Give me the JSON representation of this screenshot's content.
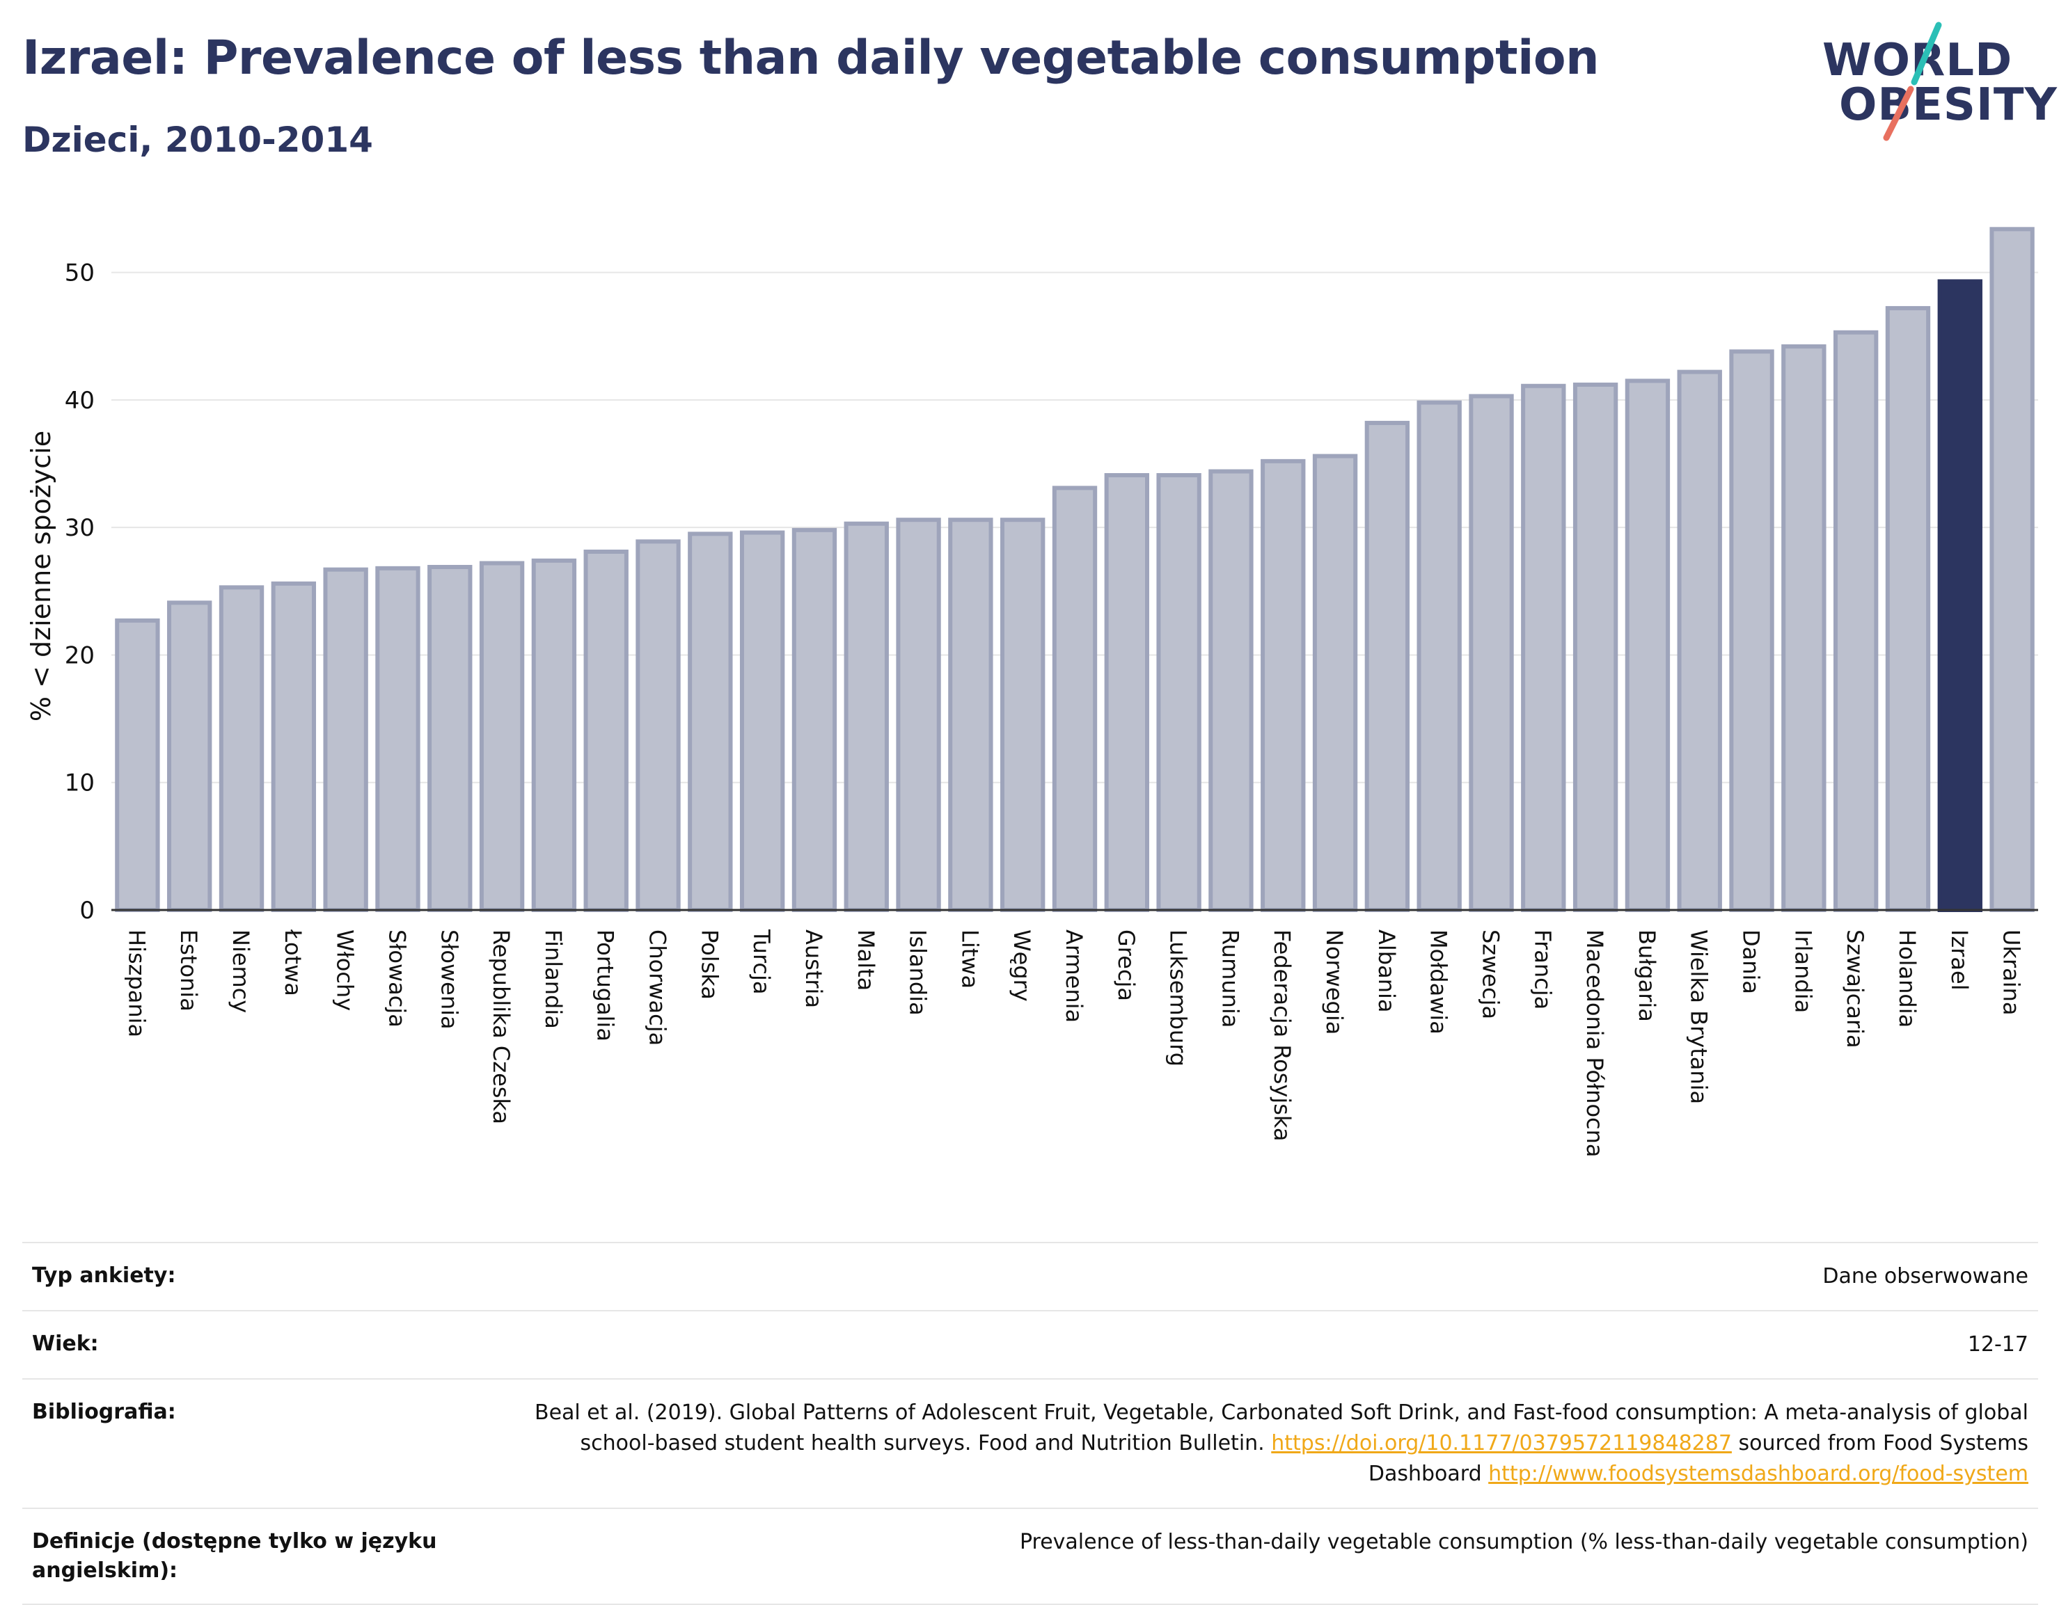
{
  "header": {
    "title": "Izrael: Prevalence of less than daily vegetable consumption",
    "subtitle": "Dzieci, 2010-2014"
  },
  "logo": {
    "line1": "WORLD",
    "line2": "OBESITY",
    "colors": {
      "text": "#2c3560",
      "slash_top": "#2bbfb6",
      "slash_bottom": "#e8705f"
    }
  },
  "colors": {
    "bar": "#2c3560",
    "bar_muted_fill": "#bcc0ce",
    "bar_muted_stroke": "#9ea4bb",
    "grid": "#e6e6e6",
    "link": "#f0a818"
  },
  "chart_data": {
    "type": "bar",
    "ylabel": "% < dzienne spożycie",
    "xlabel": "",
    "ylim": [
      0,
      55
    ],
    "yticks": [
      0,
      10,
      20,
      30,
      40,
      50
    ],
    "grid": true,
    "highlight": "Izrael",
    "categories": [
      "Hiszpania",
      "Estonia",
      "Niemcy",
      "Łotwa",
      "Włochy",
      "Słowacja",
      "Słowenia",
      "Republika Czeska",
      "Finlandia",
      "Portugalia",
      "Chorwacja",
      "Polska",
      "Turcja",
      "Austria",
      "Malta",
      "Islandia",
      "Litwa",
      "Węgry",
      "Armenia",
      "Grecja",
      "Luksemburg",
      "Rumunia",
      "Federacja Rosyjska",
      "Norwegia",
      "Albania",
      "Mołdawia",
      "Szwecja",
      "Francja",
      "Macedonia Północna",
      "Bułgaria",
      "Wielka Brytania",
      "Dania",
      "Irlandia",
      "Szwajcaria",
      "Holandia",
      "Izrael",
      "Ukraina"
    ],
    "values": [
      22.7,
      24.1,
      25.3,
      25.6,
      26.7,
      26.8,
      26.9,
      27.2,
      27.4,
      28.1,
      28.9,
      29.5,
      29.6,
      29.8,
      30.3,
      30.6,
      30.6,
      30.6,
      33.1,
      34.1,
      34.1,
      34.4,
      35.2,
      35.6,
      38.2,
      39.8,
      40.3,
      41.1,
      41.2,
      41.5,
      42.2,
      43.8,
      44.2,
      45.3,
      47.2,
      49.3,
      53.4
    ]
  },
  "meta": {
    "rows": [
      {
        "label": "Typ ankiety:",
        "value": "Dane obserwowane"
      },
      {
        "label": "Wiek:",
        "value": "12-17"
      },
      {
        "label": "Bibliografia:",
        "text_a": "Beal et al. (2019). Global Patterns of Adolescent Fruit, Vegetable, Carbonated Soft Drink, and Fast-food consumption: A meta-analysis of global school-based student health surveys. Food and Nutrition Bulletin. ",
        "link_a": "https://doi.org/10.1177/0379572119848287",
        "text_b": " sourced from Food Systems Dashboard ",
        "link_b": "http://www.foodsystemsdashboard.org/food-system"
      },
      {
        "label": "Definicje (dostępne tylko w języku angielskim):",
        "value": "Prevalence of less-than-daily vegetable consumption (% less-than-daily vegetable consumption)"
      }
    ]
  }
}
